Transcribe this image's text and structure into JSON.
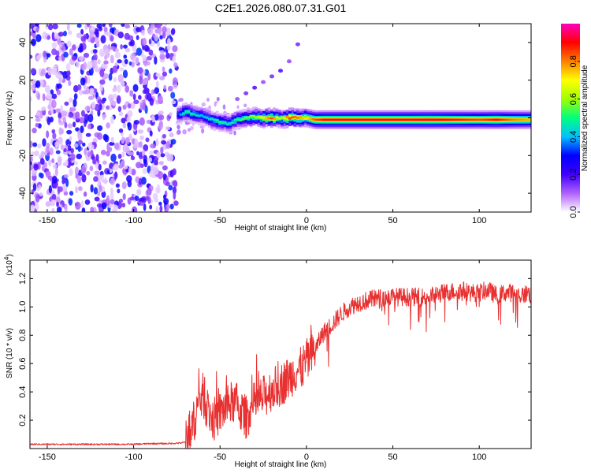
{
  "figure": {
    "title": "C2E1.2026.080.07.31.G01"
  },
  "chart_data": [
    {
      "type": "heatmap",
      "title": "C2E1.2026.080.07.31.G01",
      "xlabel": "Height of straight line (km)",
      "ylabel": "Frequency (Hz)",
      "xlim": [
        -160,
        130
      ],
      "ylim": [
        -50,
        50
      ],
      "x_ticks": [
        -150,
        -100,
        -50,
        0,
        50,
        100
      ],
      "x_tick_labels": [
        "-150",
        "-100",
        "-50",
        "0",
        "50",
        "100"
      ],
      "y_ticks": [
        -40,
        -20,
        0,
        20,
        40
      ],
      "y_tick_labels": [
        "-40",
        "-20",
        "0",
        "20",
        "40"
      ],
      "noise_region_km": [
        -160,
        -75
      ],
      "signal_ridge": {
        "x_km": [
          -75,
          -70,
          -65,
          -60,
          -55,
          -50,
          -45,
          -40,
          -35,
          -30,
          -25,
          -20,
          -15,
          -10,
          -5,
          0,
          5,
          10,
          20,
          30,
          40,
          50,
          60,
          70,
          80,
          90,
          100,
          110,
          120,
          130
        ],
        "freq_hz": [
          1.5,
          3,
          2,
          1,
          -1,
          -2,
          -3,
          -1,
          0,
          0.5,
          0,
          0,
          -0.5,
          0,
          0,
          0,
          -1,
          -1,
          -1,
          -1,
          -1,
          -1,
          -1,
          -1,
          -1,
          -1,
          -1,
          -1,
          -1,
          -1
        ],
        "peak_amplitude": [
          0.3,
          0.5,
          0.45,
          0.4,
          0.45,
          0.5,
          0.45,
          0.5,
          0.55,
          0.6,
          0.7,
          0.85,
          0.6,
          0.85,
          0.8,
          0.7,
          0.85,
          0.9,
          0.9,
          0.9,
          0.9,
          0.9,
          0.9,
          0.92,
          0.9,
          0.88,
          0.85,
          0.9,
          0.8,
          0.75
        ]
      },
      "secondary_branch": {
        "x_km": [
          -40,
          -35,
          -30,
          -25,
          -20,
          -15,
          -10,
          -5
        ],
        "freq_hz": [
          10,
          13,
          16,
          19,
          22,
          25,
          30,
          39
        ]
      },
      "colorbar": {
        "label": "Normalized spectral amplitude",
        "range": [
          0,
          1
        ],
        "ticks": [
          0,
          0.2,
          0.4,
          0.6,
          0.8
        ],
        "tick_labels": [
          "0.0",
          "0.2",
          "0.4",
          "0.6",
          "0.8"
        ],
        "colors": [
          "#ffffff",
          "#b060ff",
          "#4000ff",
          "#0000ff",
          "#00c0ff",
          "#00ff80",
          "#a0ff00",
          "#ffff00",
          "#ff8000",
          "#ff0000",
          "#ff00c0"
        ]
      }
    },
    {
      "type": "line",
      "xlabel": "Height of straight line (km)",
      "ylabel": "SNR (10 * v/v)",
      "y_scale_label": "(x10",
      "y_scale_exponent": "4",
      "y_scale_close": ")",
      "xlim": [
        -160,
        130
      ],
      "ylim": [
        0,
        1.33
      ],
      "x_ticks": [
        -150,
        -100,
        -50,
        0,
        50,
        100
      ],
      "x_tick_labels": [
        "-150",
        "-100",
        "-50",
        "0",
        "50",
        "100"
      ],
      "y_ticks": [
        0.2,
        0.4,
        0.6,
        0.8,
        1.0,
        1.2
      ],
      "y_tick_labels": [
        "0.2",
        "0.4",
        "0.6",
        "0.8",
        "1.0",
        "1.2"
      ],
      "line_color": "#e83030",
      "series": [
        {
          "name": "SNR",
          "x": [
            -160,
            -150,
            -140,
            -130,
            -120,
            -110,
            -100,
            -90,
            -80,
            -72,
            -69,
            -66,
            -63,
            -60,
            -57,
            -54,
            -50,
            -46,
            -42,
            -38,
            -35,
            -30,
            -25,
            -20,
            -15,
            -10,
            -6,
            -3,
            0,
            3,
            6,
            8,
            10,
            15,
            20,
            25,
            30,
            40,
            50,
            60,
            70,
            80,
            90,
            95,
            100,
            105,
            110,
            115,
            120,
            125,
            128,
            130
          ],
          "y": [
            0.03,
            0.03,
            0.03,
            0.03,
            0.03,
            0.03,
            0.03,
            0.035,
            0.035,
            0.04,
            0.05,
            0.15,
            0.3,
            0.38,
            0.27,
            0.2,
            0.25,
            0.3,
            0.33,
            0.27,
            0.22,
            0.32,
            0.36,
            0.42,
            0.45,
            0.5,
            0.55,
            0.56,
            0.62,
            0.65,
            0.72,
            0.78,
            0.82,
            0.88,
            0.95,
            1.0,
            1.03,
            1.06,
            1.07,
            1.07,
            1.07,
            1.1,
            1.12,
            1.1,
            1.1,
            1.12,
            1.08,
            1.1,
            1.1,
            1.08,
            1.1,
            1.08
          ]
        }
      ]
    }
  ]
}
